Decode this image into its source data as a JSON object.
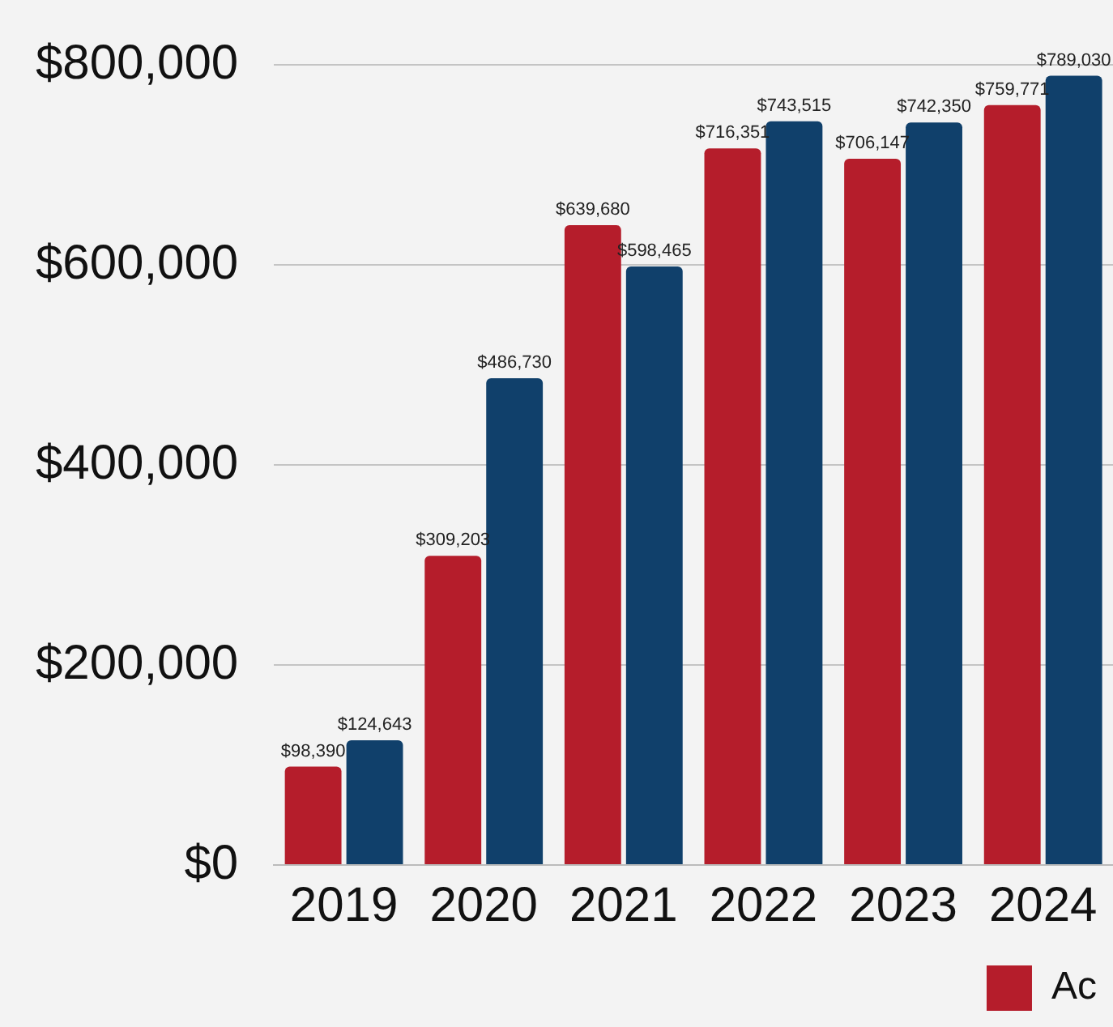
{
  "chart_data": {
    "type": "bar",
    "categories": [
      "2019",
      "2020",
      "2021",
      "2022",
      "2023",
      "2024"
    ],
    "series": [
      {
        "name": "Ac",
        "color": "#b51d2b",
        "values": [
          98390,
          309203,
          639680,
          716351,
          706147,
          759771
        ],
        "value_labels": [
          "$98,390",
          "$309,203",
          "$639,680",
          "$716,351",
          "$706,147",
          "$759,771"
        ]
      },
      {
        "color": "#10406b",
        "values": [
          124643,
          486730,
          598465,
          743515,
          742350,
          789030
        ],
        "value_labels": [
          "$124,643",
          "$486,730",
          "$598,465",
          "$743,515",
          "$742,350",
          "$789,030"
        ]
      }
    ],
    "ylim": [
      0,
      800000
    ],
    "yticks": [
      {
        "value": 0,
        "label": "$0"
      },
      {
        "value": 200000,
        "label": "$200,000"
      },
      {
        "value": 400000,
        "label": "$400,000"
      },
      {
        "value": 600000,
        "label": "$600,000"
      },
      {
        "value": 800000,
        "label": "$800,000"
      }
    ],
    "grid": "y",
    "legend": "bottom"
  }
}
